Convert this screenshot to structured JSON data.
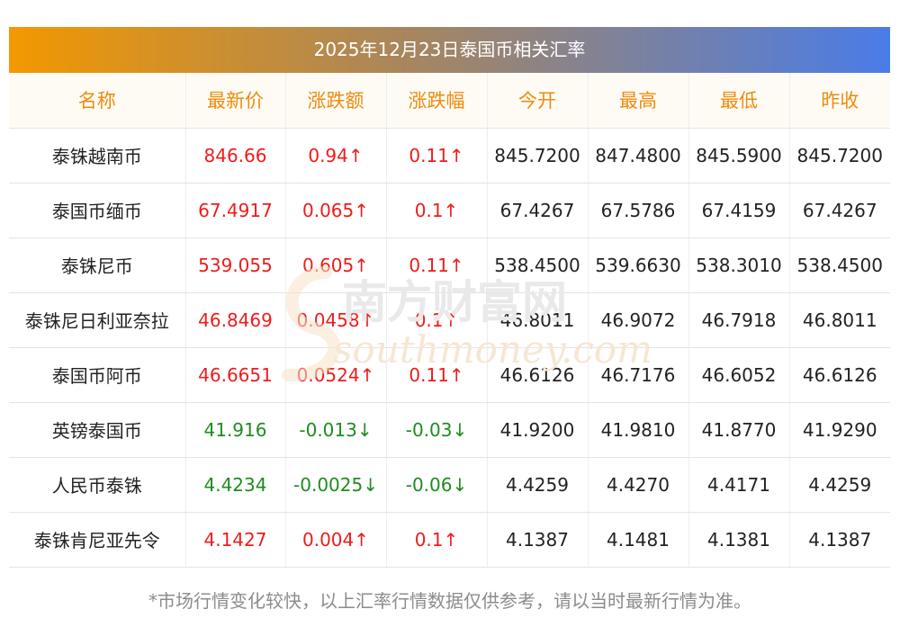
{
  "title": "2025年12月23日泰国币相关汇率",
  "colors": {
    "header_text": "#ee8b0e",
    "up": "#ee1c1c",
    "down": "#1f8c1f",
    "title_gradient_start": "#f39800",
    "title_gradient_end": "#4a7ce8"
  },
  "columns": [
    "名称",
    "最新价",
    "涨跌额",
    "涨跌幅",
    "今开",
    "最高",
    "最低",
    "昨收"
  ],
  "rows": [
    {
      "name": "泰铢越南币",
      "latest": "846.66",
      "change": "0.94↑",
      "pct": "0.11↑",
      "open": "845.7200",
      "high": "847.4800",
      "low": "845.5900",
      "prev": "845.7200",
      "trend": "up"
    },
    {
      "name": "泰国币缅币",
      "latest": "67.4917",
      "change": "0.065↑",
      "pct": "0.1↑",
      "open": "67.4267",
      "high": "67.5786",
      "low": "67.4159",
      "prev": "67.4267",
      "trend": "up"
    },
    {
      "name": "泰铢尼币",
      "latest": "539.055",
      "change": "0.605↑",
      "pct": "0.11↑",
      "open": "538.4500",
      "high": "539.6630",
      "low": "538.3010",
      "prev": "538.4500",
      "trend": "up"
    },
    {
      "name": "泰铢尼日利亚奈拉",
      "latest": "46.8469",
      "change": "0.0458↑",
      "pct": "0.1↑",
      "open": "46.8011",
      "high": "46.9072",
      "low": "46.7918",
      "prev": "46.8011",
      "trend": "up"
    },
    {
      "name": "泰国币阿币",
      "latest": "46.6651",
      "change": "0.0524↑",
      "pct": "0.11↑",
      "open": "46.6126",
      "high": "46.7176",
      "low": "46.6052",
      "prev": "46.6126",
      "trend": "up"
    },
    {
      "name": "英镑泰国币",
      "latest": "41.916",
      "change": "-0.013↓",
      "pct": "-0.03↓",
      "open": "41.9200",
      "high": "41.9810",
      "low": "41.8770",
      "prev": "41.9290",
      "trend": "down"
    },
    {
      "name": "人民币泰铢",
      "latest": "4.4234",
      "change": "-0.0025↓",
      "pct": "-0.06↓",
      "open": "4.4259",
      "high": "4.4270",
      "low": "4.4171",
      "prev": "4.4259",
      "trend": "down"
    },
    {
      "name": "泰铢肯尼亚先令",
      "latest": "4.1427",
      "change": "0.004↑",
      "pct": "0.1↑",
      "open": "4.1387",
      "high": "4.1481",
      "low": "4.1381",
      "prev": "4.1387",
      "trend": "up"
    }
  ],
  "watermark": {
    "cn": "南方财富网",
    "en": "southmoney.com"
  },
  "footnote": "*市场行情变化较快，以上汇率行情数据仅供参考，请以当时最新行情为准。"
}
